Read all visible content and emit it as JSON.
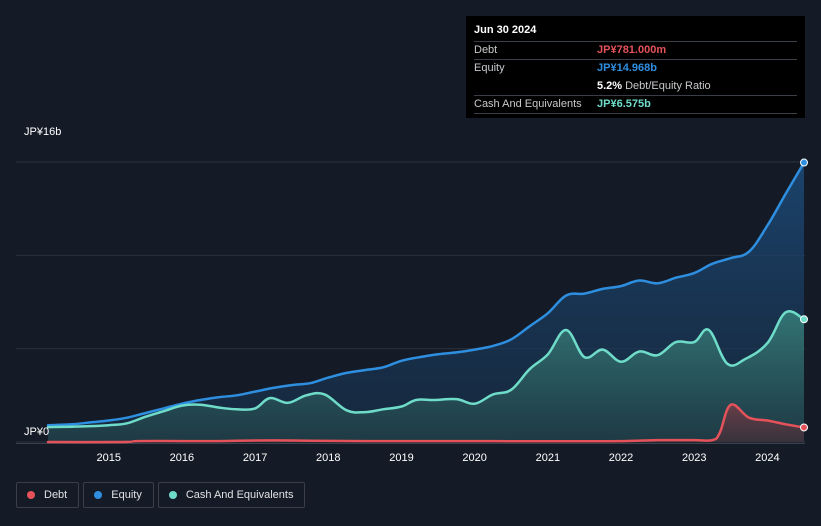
{
  "tooltip": {
    "date": "Jun 30 2024",
    "debt_label": "Debt",
    "debt_value": "JP¥781.000m",
    "equity_label": "Equity",
    "equity_value": "JP¥14.968b",
    "ratio_value": "5.2%",
    "ratio_label": "Debt/Equity Ratio",
    "cash_label": "Cash And Equivalents",
    "cash_value": "JP¥6.575b"
  },
  "legend": {
    "debt": "Debt",
    "equity": "Equity",
    "cash": "Cash And Equivalents"
  },
  "colors": {
    "debt": "#e5525a",
    "equity": "#2e8fe0",
    "cash": "#6fdcc9",
    "background": "#151b26"
  },
  "chart_data": {
    "type": "area",
    "ylabel_top": "JP¥16b",
    "ylabel_bottom": "JP¥0",
    "ylim": [
      0,
      15
    ],
    "xlim": [
      2014.17,
      2024.5
    ],
    "x_ticks": [
      "2015",
      "2016",
      "2017",
      "2018",
      "2019",
      "2020",
      "2021",
      "2022",
      "2023",
      "2024"
    ],
    "series": [
      {
        "name": "Equity",
        "x": [
          2014.17,
          2014.5,
          2014.75,
          2015.0,
          2015.25,
          2015.5,
          2015.75,
          2016.0,
          2016.25,
          2016.5,
          2016.75,
          2017.0,
          2017.25,
          2017.5,
          2017.75,
          2018.0,
          2018.25,
          2018.5,
          2018.75,
          2019.0,
          2019.25,
          2019.5,
          2019.75,
          2020.0,
          2020.25,
          2020.5,
          2020.75,
          2021.0,
          2021.25,
          2021.5,
          2021.75,
          2022.0,
          2022.25,
          2022.5,
          2022.75,
          2023.0,
          2023.25,
          2023.5,
          2023.75,
          2024.0,
          2024.25,
          2024.5
        ],
        "values": [
          0.9,
          0.95,
          1.05,
          1.15,
          1.3,
          1.55,
          1.8,
          2.05,
          2.25,
          2.4,
          2.5,
          2.7,
          2.9,
          3.05,
          3.15,
          3.45,
          3.7,
          3.85,
          4.0,
          4.35,
          4.55,
          4.7,
          4.8,
          4.95,
          5.15,
          5.5,
          6.2,
          6.9,
          7.85,
          7.95,
          8.2,
          8.35,
          8.65,
          8.5,
          8.8,
          9.05,
          9.55,
          9.85,
          10.2,
          11.6,
          13.3,
          14.97
        ]
      },
      {
        "name": "Cash And Equivalents",
        "x": [
          2014.17,
          2014.5,
          2014.75,
          2015.0,
          2015.25,
          2015.5,
          2015.75,
          2016.0,
          2016.25,
          2016.5,
          2016.75,
          2017.0,
          2017.2,
          2017.45,
          2017.7,
          2017.95,
          2018.25,
          2018.5,
          2018.75,
          2019.0,
          2019.2,
          2019.45,
          2019.75,
          2020.0,
          2020.25,
          2020.5,
          2020.75,
          2021.0,
          2021.25,
          2021.5,
          2021.75,
          2022.0,
          2022.25,
          2022.5,
          2022.75,
          2023.0,
          2023.2,
          2023.45,
          2023.7,
          2024.0,
          2024.25,
          2024.5
        ],
        "values": [
          0.8,
          0.82,
          0.85,
          0.9,
          1.0,
          1.35,
          1.65,
          1.95,
          2.0,
          1.85,
          1.75,
          1.8,
          2.35,
          2.1,
          2.5,
          2.55,
          1.7,
          1.6,
          1.75,
          1.9,
          2.25,
          2.25,
          2.3,
          2.05,
          2.55,
          2.8,
          3.9,
          4.7,
          6.0,
          4.55,
          4.95,
          4.3,
          4.85,
          4.65,
          5.35,
          5.35,
          6.0,
          4.2,
          4.45,
          5.3,
          6.95,
          6.575
        ]
      },
      {
        "name": "Debt",
        "x": [
          2014.17,
          2015.2,
          2015.4,
          2016.0,
          2016.5,
          2017.0,
          2017.5,
          2018.0,
          2018.5,
          2019.0,
          2019.5,
          2020.0,
          2020.5,
          2021.0,
          2021.5,
          2022.0,
          2022.5,
          2023.0,
          2023.25,
          2023.35,
          2023.5,
          2023.75,
          2024.0,
          2024.25,
          2024.5
        ],
        "values": [
          0,
          0,
          0.05,
          0.05,
          0.05,
          0.08,
          0.08,
          0.06,
          0.05,
          0.05,
          0.05,
          0.05,
          0.04,
          0.04,
          0.04,
          0.05,
          0.1,
          0.1,
          0.1,
          0.5,
          2.0,
          1.3,
          1.15,
          0.95,
          0.78
        ]
      }
    ]
  }
}
